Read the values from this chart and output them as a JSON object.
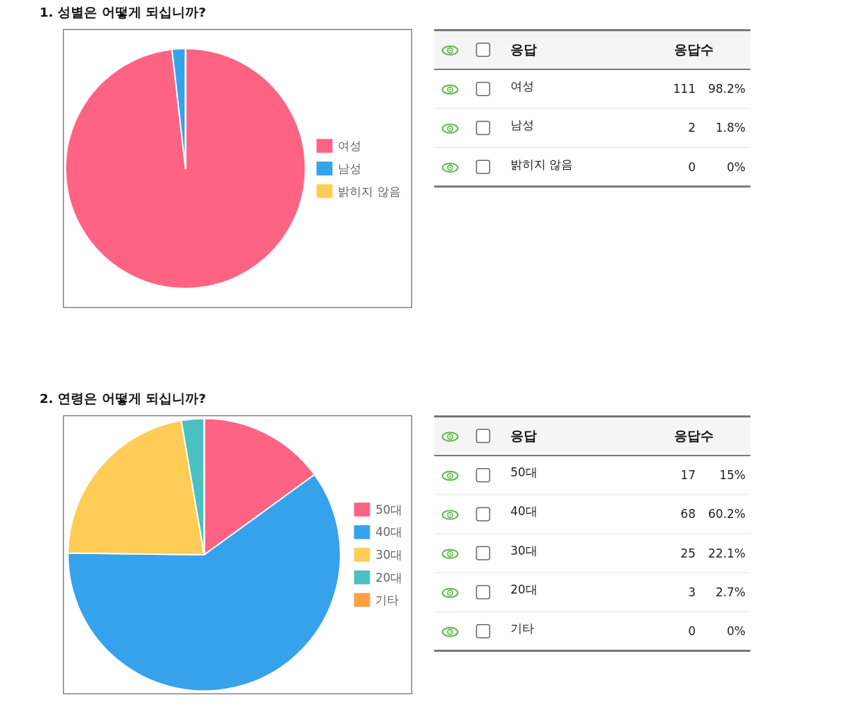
{
  "chart_data": [
    {
      "type": "pie",
      "title": "1. 성별은 어떻게 되십니까?",
      "categories": [
        "여성",
        "남성",
        "밝히지 않음"
      ],
      "values": [
        98.2,
        1.8,
        0
      ],
      "colors": [
        "#ff6384",
        "#36a2eb",
        "#ffcd56"
      ],
      "legend": "right",
      "annotations": [
        "응답",
        "응답수",
        {
          "text": "111",
          "x": "여성"
        },
        {
          "text": "98.2%",
          "x": "여성"
        },
        {
          "text": "2",
          "x": "남성"
        },
        {
          "text": "1.8%",
          "x": "남성"
        },
        {
          "text": "0",
          "x": "밝히지 않음"
        },
        {
          "text": "0%",
          "x": "밝히지 않음"
        }
      ]
    },
    {
      "type": "pie",
      "title": "2. 연령은 어떻게 되십니까?",
      "categories": [
        "50대",
        "40대",
        "30대",
        "20대",
        "기타"
      ],
      "values": [
        15,
        60.2,
        22.1,
        2.7,
        0
      ],
      "colors": [
        "#ff6384",
        "#36a2eb",
        "#ffcd56",
        "#4bc0c0",
        "#ff9f40"
      ],
      "legend": "right",
      "annotations": [
        "응답",
        "응답수",
        {
          "text": "17",
          "x": "50대"
        },
        {
          "text": "15%",
          "x": "50대"
        },
        {
          "text": "68",
          "x": "40대"
        },
        {
          "text": "60.2%",
          "x": "40대"
        },
        {
          "text": "25",
          "x": "30대"
        },
        {
          "text": "22.1%",
          "x": "30대"
        },
        {
          "text": "3",
          "x": "20대"
        },
        {
          "text": "2.7%",
          "x": "20대"
        },
        {
          "text": "0",
          "x": "기타"
        },
        {
          "text": "0%",
          "x": "기타"
        }
      ]
    }
  ]
}
